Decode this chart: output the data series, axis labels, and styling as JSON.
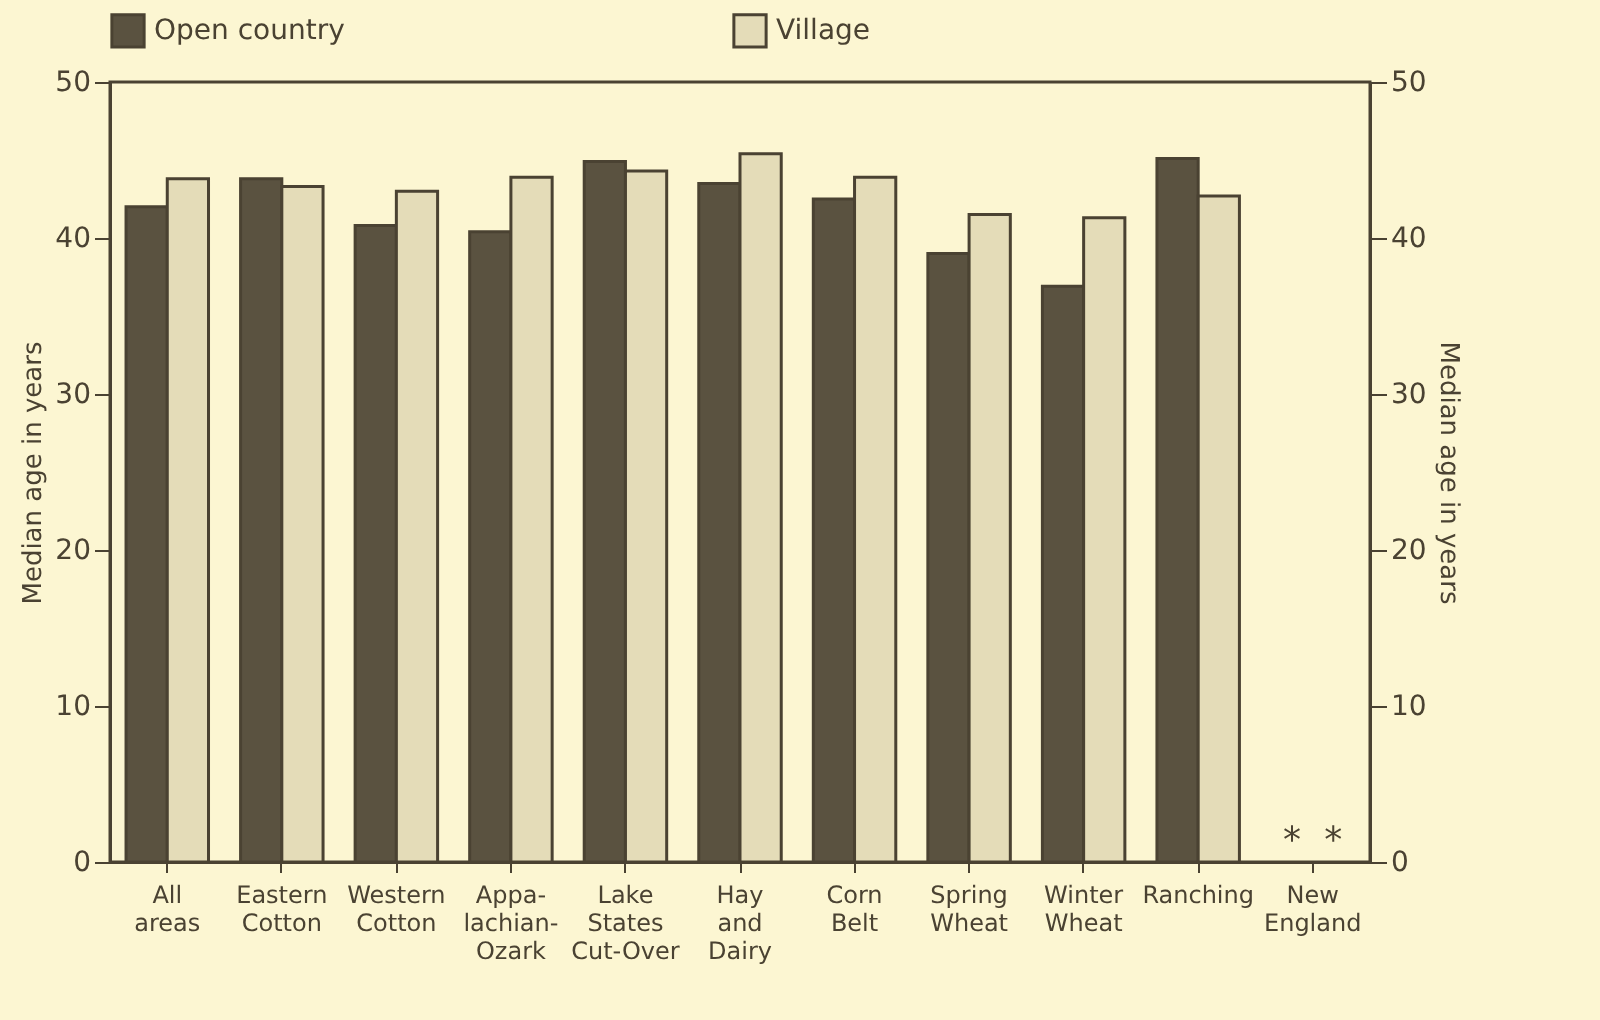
{
  "chart_data": {
    "type": "bar",
    "ylabel": "Median age in years",
    "y2label": "Median age in years",
    "categories": [
      "All areas",
      "Eastern Cotton",
      "Western Cotton",
      "Appa- lachian- Ozark",
      "Lake States Cut-Over",
      "Hay and Dairy",
      "Corn Belt",
      "Spring Wheat",
      "Winter Wheat",
      "Ranching",
      "New England"
    ],
    "series": [
      {
        "name": "Open country",
        "color": "#5a5240",
        "values": [
          42.0,
          43.8,
          40.8,
          40.4,
          44.9,
          43.5,
          42.5,
          39.0,
          36.9,
          45.1,
          null
        ]
      },
      {
        "name": "Village",
        "color": "#e4dcb8",
        "values": [
          43.8,
          43.3,
          43.0,
          43.9,
          44.3,
          45.4,
          43.9,
          41.5,
          41.3,
          42.7,
          null
        ]
      }
    ],
    "ylim": [
      0,
      50
    ],
    "yticks": [
      0,
      10,
      20,
      30,
      40,
      50
    ],
    "y2lim": [
      0,
      50
    ],
    "y2ticks": [
      0,
      10,
      20,
      30,
      40,
      50
    ],
    "annotations": [
      "*",
      "*"
    ],
    "legend": "top",
    "grid": false
  }
}
